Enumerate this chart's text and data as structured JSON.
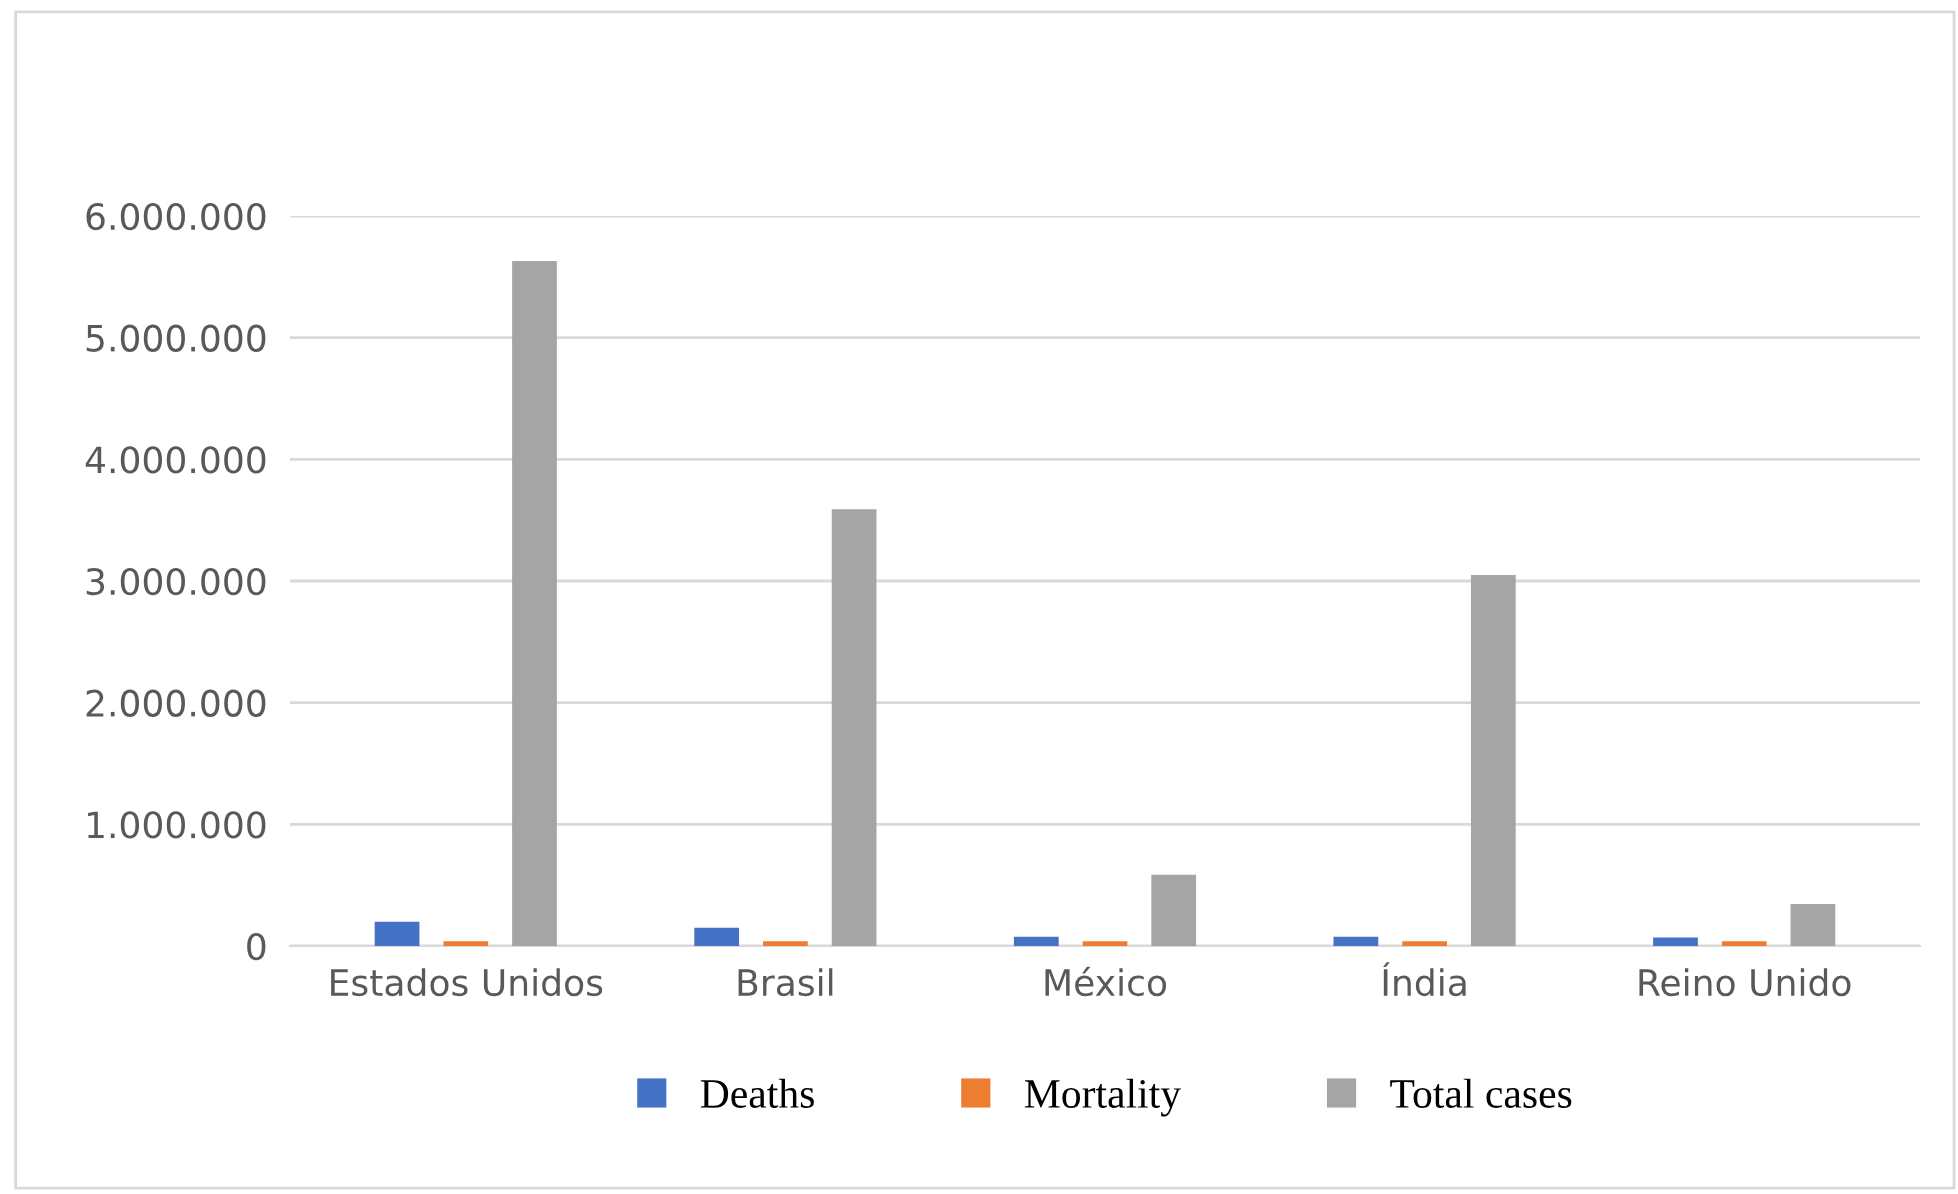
{
  "chart_data": {
    "type": "bar",
    "categories": [
      "Estados Unidos",
      "Brasil",
      "México",
      "Índia",
      "Reino Unido"
    ],
    "series": [
      {
        "name": "Deaths",
        "color": "#4472c4",
        "values": [
          200000,
          150000,
          75000,
          75000,
          70000
        ]
      },
      {
        "name": "Mortality",
        "color": "#ed7d31",
        "values": [
          40000,
          40000,
          40000,
          40000,
          40000
        ]
      },
      {
        "name": "Total cases",
        "color": "#a5a5a5",
        "values": [
          5630000,
          3590000,
          585000,
          3050000,
          345000
        ]
      }
    ],
    "ylim": [
      0,
      6000000
    ],
    "yticks": [
      {
        "value": 0,
        "label": "0"
      },
      {
        "value": 1000000,
        "label": "1.000.000"
      },
      {
        "value": 2000000,
        "label": "2.000.000"
      },
      {
        "value": 3000000,
        "label": "3.000.000"
      },
      {
        "value": 4000000,
        "label": "4.000.000"
      },
      {
        "value": 5000000,
        "label": "5.000.000"
      },
      {
        "value": 6000000,
        "label": "6.000.000"
      }
    ],
    "grid": "y",
    "legend": "bottom"
  }
}
